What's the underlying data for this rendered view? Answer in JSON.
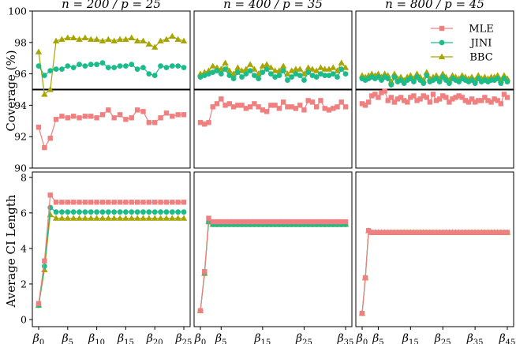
{
  "colors": {
    "MLE": "#F08080",
    "JINI": "#1BBC8A",
    "BBC": "#A8A500",
    "refline": "#000000"
  },
  "legend": [
    {
      "name": "MLE",
      "marker": "square"
    },
    {
      "name": "JINI",
      "marker": "circle"
    },
    {
      "name": "BBC",
      "marker": "triangle"
    }
  ],
  "chart_data": [
    {
      "type": "line",
      "panel": "coverage-n200",
      "title": "n = 200 / p = 25",
      "ylabel": "Coverage (%)",
      "ylim": [
        90,
        100
      ],
      "yticks": [
        90,
        92,
        94,
        96,
        98,
        100
      ],
      "hline": 95,
      "n_params": 26,
      "series": [
        {
          "name": "MLE",
          "values": [
            92.6,
            91.3,
            91.9,
            93.1,
            93.3,
            93.2,
            93.3,
            93.2,
            93.3,
            93.3,
            93.2,
            93.4,
            93.7,
            93.2,
            93.4,
            93.1,
            93.2,
            93.7,
            93.6,
            92.9,
            92.9,
            93.2,
            93.5,
            93.3,
            93.4,
            93.4
          ]
        },
        {
          "name": "JINI",
          "values": [
            96.5,
            95.9,
            96.2,
            96.3,
            96.3,
            96.5,
            96.4,
            96.6,
            96.5,
            96.6,
            96.6,
            96.7,
            96.4,
            96.4,
            96.5,
            96.5,
            96.6,
            96.3,
            96.4,
            96.0,
            95.9,
            96.5,
            96.4,
            96.5,
            96.5,
            96.4
          ]
        },
        {
          "name": "BBC",
          "values": [
            97.4,
            94.7,
            95.0,
            98.1,
            98.2,
            98.3,
            98.3,
            98.2,
            98.3,
            98.2,
            98.2,
            98.1,
            98.2,
            98.1,
            98.2,
            98.2,
            98.3,
            98.1,
            98.1,
            97.9,
            97.7,
            98.1,
            98.2,
            98.4,
            98.2,
            98.1
          ]
        }
      ]
    },
    {
      "type": "line",
      "panel": "coverage-n400",
      "title": "n = 400 / p = 35",
      "ylim": [
        90,
        100
      ],
      "hline": 95,
      "n_params": 36,
      "series": [
        {
          "name": "MLE",
          "values": [
            92.9,
            92.8,
            92.9,
            93.9,
            94.1,
            94.4,
            94.0,
            94.1,
            93.9,
            94.0,
            94.0,
            93.8,
            93.9,
            94.1,
            93.9,
            93.7,
            93.6,
            94.0,
            94.0,
            93.8,
            94.2,
            93.9,
            93.9,
            93.8,
            94.0,
            93.7,
            94.3,
            94.2,
            93.9,
            94.3,
            93.8,
            93.7,
            93.8,
            93.9,
            94.2,
            93.9
          ]
        },
        {
          "name": "JINI",
          "values": [
            95.8,
            95.9,
            96.0,
            96.1,
            96.2,
            96.0,
            96.3,
            95.9,
            95.7,
            96.1,
            95.8,
            96.0,
            96.2,
            95.9,
            95.7,
            96.1,
            96.3,
            96.0,
            95.8,
            95.9,
            96.2,
            95.6,
            95.8,
            96.0,
            95.9,
            95.6,
            96.1,
            95.9,
            95.8,
            96.0,
            95.9,
            95.9,
            96.0,
            95.8,
            96.3,
            96.0
          ]
        },
        {
          "name": "BBC",
          "values": [
            96.0,
            96.1,
            96.2,
            96.5,
            96.4,
            96.3,
            96.7,
            96.2,
            96.0,
            96.4,
            96.2,
            96.3,
            96.6,
            96.3,
            96.0,
            96.5,
            96.6,
            96.4,
            96.2,
            96.2,
            96.5,
            96.0,
            96.2,
            96.3,
            96.3,
            96.0,
            96.4,
            96.3,
            96.2,
            96.4,
            96.3,
            96.3,
            96.4,
            96.2,
            96.7,
            96.4
          ]
        }
      ]
    },
    {
      "type": "line",
      "panel": "coverage-n800",
      "title": "n = 800 / p = 45",
      "ylim": [
        90,
        100
      ],
      "hline": 95,
      "n_params": 46,
      "series": [
        {
          "name": "MLE",
          "values": [
            94.1,
            94.0,
            94.2,
            94.6,
            94.7,
            94.5,
            94.8,
            94.9,
            94.3,
            94.5,
            94.2,
            94.4,
            94.5,
            94.3,
            94.2,
            94.5,
            94.6,
            94.3,
            94.4,
            94.6,
            94.5,
            94.2,
            94.7,
            94.3,
            94.4,
            94.6,
            94.5,
            94.2,
            94.4,
            94.5,
            94.6,
            94.5,
            94.3,
            94.2,
            94.4,
            94.2,
            94.3,
            94.3,
            94.5,
            94.3,
            94.2,
            94.4,
            94.3,
            94.1,
            94.7,
            94.5
          ]
        },
        {
          "name": "JINI",
          "values": [
            95.7,
            95.6,
            95.7,
            95.8,
            95.7,
            95.8,
            95.6,
            95.8,
            95.7,
            95.3,
            95.8,
            95.5,
            95.6,
            95.4,
            95.6,
            95.7,
            95.5,
            95.8,
            95.6,
            95.4,
            95.9,
            95.5,
            95.6,
            95.7,
            95.5,
            95.8,
            95.6,
            95.4,
            95.7,
            95.6,
            95.5,
            95.7,
            95.6,
            95.5,
            95.6,
            95.4,
            95.7,
            95.5,
            95.6,
            95.5,
            95.6,
            95.6,
            95.7,
            95.4,
            95.7,
            95.5
          ]
        },
        {
          "name": "BBC",
          "values": [
            95.9,
            95.8,
            95.9,
            96.0,
            95.9,
            96.0,
            95.8,
            96.0,
            95.9,
            95.5,
            96.0,
            95.7,
            95.8,
            95.6,
            95.8,
            95.9,
            95.7,
            96.0,
            95.8,
            95.6,
            96.1,
            95.7,
            95.8,
            95.9,
            95.7,
            96.0,
            95.8,
            95.6,
            95.9,
            95.8,
            95.7,
            95.9,
            95.8,
            95.7,
            95.8,
            95.6,
            95.9,
            95.7,
            95.8,
            95.7,
            95.8,
            95.8,
            95.9,
            95.6,
            95.9,
            95.7
          ]
        }
      ]
    },
    {
      "type": "line",
      "panel": "length-n200",
      "ylabel": "Average CI Length",
      "ylim": [
        -0.4,
        8.3
      ],
      "yticks": [
        0,
        2,
        4,
        6,
        8
      ],
      "n_params": 26,
      "xticks": [
        {
          "i": 0,
          "sub": "0"
        },
        {
          "i": 5,
          "sub": "5"
        },
        {
          "i": 10,
          "sub": "10"
        },
        {
          "i": 15,
          "sub": "15"
        },
        {
          "i": 20,
          "sub": "20"
        },
        {
          "i": 25,
          "sub": "25"
        }
      ],
      "series": [
        {
          "name": "MLE",
          "values": [
            0.9,
            3.3,
            7.0,
            6.6,
            6.6,
            6.6,
            6.6,
            6.6,
            6.6,
            6.6,
            6.6,
            6.6,
            6.6,
            6.6,
            6.6,
            6.6,
            6.6,
            6.6,
            6.6,
            6.6,
            6.6,
            6.6,
            6.6,
            6.6,
            6.6,
            6.6
          ]
        },
        {
          "name": "JINI",
          "values": [
            0.8,
            3.0,
            6.3,
            6.05,
            6.05,
            6.05,
            6.05,
            6.05,
            6.05,
            6.05,
            6.05,
            6.05,
            6.05,
            6.05,
            6.05,
            6.05,
            6.05,
            6.05,
            6.05,
            6.05,
            6.05,
            6.05,
            6.05,
            6.05,
            6.05,
            6.05
          ]
        },
        {
          "name": "BBC",
          "values": [
            0.8,
            2.8,
            5.9,
            5.7,
            5.7,
            5.7,
            5.7,
            5.7,
            5.7,
            5.7,
            5.7,
            5.7,
            5.7,
            5.7,
            5.7,
            5.7,
            5.7,
            5.7,
            5.7,
            5.7,
            5.7,
            5.7,
            5.7,
            5.7,
            5.7,
            5.7
          ]
        }
      ]
    },
    {
      "type": "line",
      "panel": "length-n400",
      "ylim": [
        -0.4,
        8.3
      ],
      "n_params": 36,
      "xticks": [
        {
          "i": 0,
          "sub": "0"
        },
        {
          "i": 5,
          "sub": "5"
        },
        {
          "i": 15,
          "sub": "15"
        },
        {
          "i": 25,
          "sub": "25"
        },
        {
          "i": 35,
          "sub": "35"
        }
      ],
      "series": [
        {
          "name": "MLE",
          "values": [
            0.5,
            2.7,
            5.7,
            5.5,
            5.5,
            5.5,
            5.5,
            5.5,
            5.5,
            5.5,
            5.5,
            5.5,
            5.5,
            5.5,
            5.5,
            5.5,
            5.5,
            5.5,
            5.5,
            5.5,
            5.5,
            5.5,
            5.5,
            5.5,
            5.5,
            5.5,
            5.5,
            5.5,
            5.5,
            5.5,
            5.5,
            5.5,
            5.5,
            5.5,
            5.5,
            5.5
          ]
        },
        {
          "name": "JINI",
          "values": [
            0.5,
            2.6,
            5.5,
            5.35,
            5.35,
            5.35,
            5.35,
            5.35,
            5.35,
            5.35,
            5.35,
            5.35,
            5.35,
            5.35,
            5.35,
            5.35,
            5.35,
            5.35,
            5.35,
            5.35,
            5.35,
            5.35,
            5.35,
            5.35,
            5.35,
            5.35,
            5.35,
            5.35,
            5.35,
            5.35,
            5.35,
            5.35,
            5.35,
            5.35,
            5.35,
            5.35
          ]
        },
        {
          "name": "BBC",
          "values": [
            0.5,
            2.6,
            5.5,
            5.35,
            5.35,
            5.35,
            5.35,
            5.35,
            5.35,
            5.35,
            5.35,
            5.35,
            5.35,
            5.35,
            5.35,
            5.35,
            5.35,
            5.35,
            5.35,
            5.35,
            5.35,
            5.35,
            5.35,
            5.35,
            5.35,
            5.35,
            5.35,
            5.35,
            5.35,
            5.35,
            5.35,
            5.35,
            5.35,
            5.35,
            5.35,
            5.35
          ]
        }
      ]
    },
    {
      "type": "line",
      "panel": "length-n800",
      "ylim": [
        -0.4,
        8.3
      ],
      "n_params": 46,
      "xticks": [
        {
          "i": 0,
          "sub": "0"
        },
        {
          "i": 5,
          "sub": "5"
        },
        {
          "i": 15,
          "sub": "15"
        },
        {
          "i": 25,
          "sub": "25"
        },
        {
          "i": 35,
          "sub": "35"
        },
        {
          "i": 45,
          "sub": "45"
        }
      ],
      "series": [
        {
          "name": "MLE",
          "values": [
            0.35,
            2.35,
            5.0,
            4.9,
            4.9,
            4.9,
            4.9,
            4.9,
            4.9,
            4.9,
            4.9,
            4.9,
            4.9,
            4.9,
            4.9,
            4.9,
            4.9,
            4.9,
            4.9,
            4.9,
            4.9,
            4.9,
            4.9,
            4.9,
            4.9,
            4.9,
            4.9,
            4.9,
            4.9,
            4.9,
            4.9,
            4.9,
            4.9,
            4.9,
            4.9,
            4.9,
            4.9,
            4.9,
            4.9,
            4.9,
            4.9,
            4.9,
            4.9,
            4.9,
            4.9,
            4.9
          ]
        },
        {
          "name": "JINI",
          "values": [
            0.35,
            2.35,
            5.0,
            4.9,
            4.9,
            4.9,
            4.9,
            4.9,
            4.9,
            4.9,
            4.9,
            4.9,
            4.9,
            4.9,
            4.9,
            4.9,
            4.9,
            4.9,
            4.9,
            4.9,
            4.9,
            4.9,
            4.9,
            4.9,
            4.9,
            4.9,
            4.9,
            4.9,
            4.9,
            4.9,
            4.9,
            4.9,
            4.9,
            4.9,
            4.9,
            4.9,
            4.9,
            4.9,
            4.9,
            4.9,
            4.9,
            4.9,
            4.9,
            4.9,
            4.9,
            4.9
          ]
        },
        {
          "name": "BBC",
          "values": [
            0.35,
            2.35,
            5.0,
            4.9,
            4.9,
            4.9,
            4.9,
            4.9,
            4.9,
            4.9,
            4.9,
            4.9,
            4.9,
            4.9,
            4.9,
            4.9,
            4.9,
            4.9,
            4.9,
            4.9,
            4.9,
            4.9,
            4.9,
            4.9,
            4.9,
            4.9,
            4.9,
            4.9,
            4.9,
            4.9,
            4.9,
            4.9,
            4.9,
            4.9,
            4.9,
            4.9,
            4.9,
            4.9,
            4.9,
            4.9,
            4.9,
            4.9,
            4.9,
            4.9,
            4.9,
            4.9
          ]
        }
      ]
    }
  ]
}
